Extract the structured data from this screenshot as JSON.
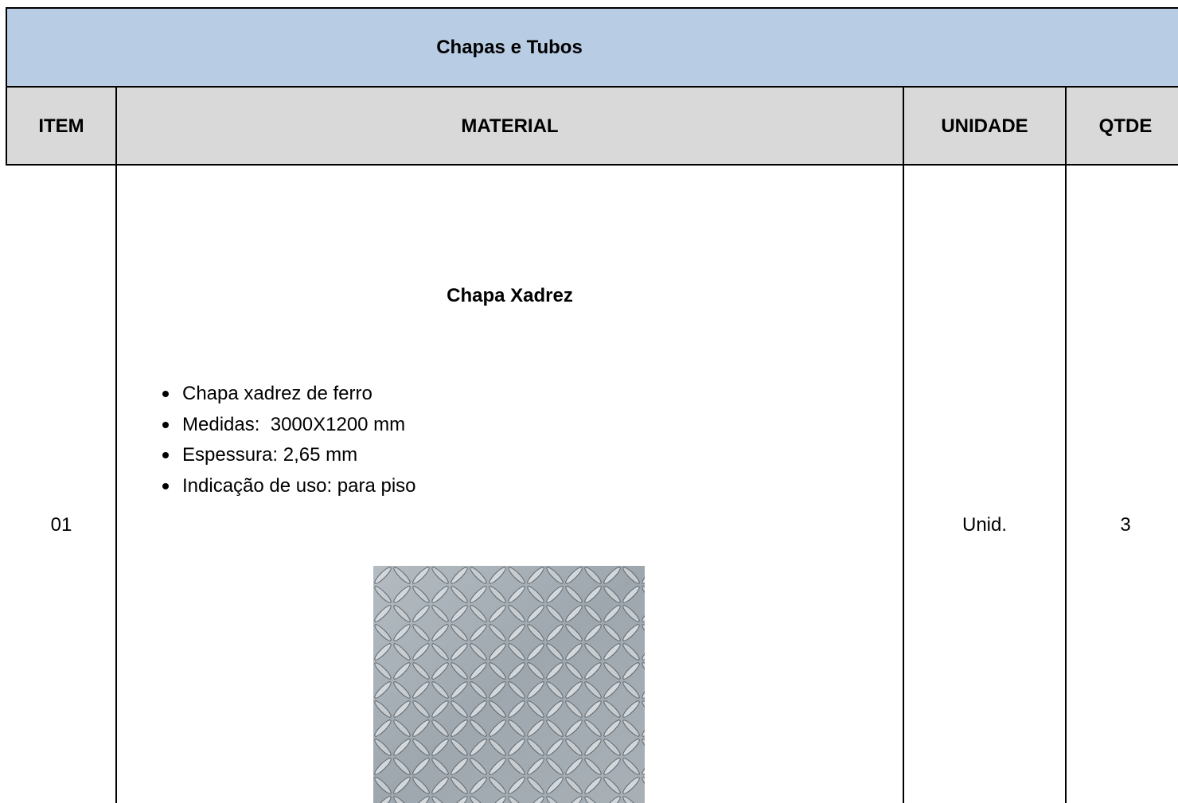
{
  "table": {
    "title": "Chapas e Tubos",
    "headers": [
      "ITEM",
      "MATERIAL",
      "UNIDADE",
      "QTDE"
    ],
    "rows": [
      {
        "item": "01",
        "material": {
          "name": "Chapa Xadrez",
          "specs": [
            "Chapa xadrez de ferro",
            "Medidas:  3000X1200 mm",
            "Espessura: 2,65 mm",
            "Indicação de uso: para piso"
          ]
        },
        "unit": "Unid.",
        "qty": "3"
      }
    ]
  }
}
